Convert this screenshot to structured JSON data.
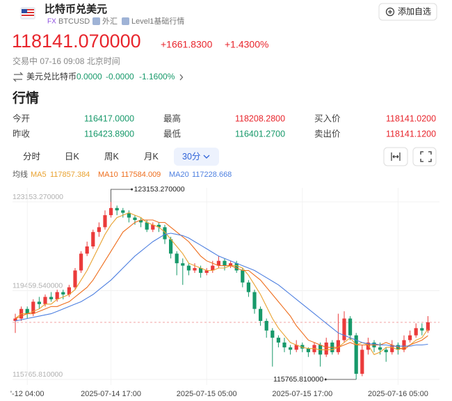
{
  "header": {
    "title": "比特币兑美元",
    "tags": [
      "FX",
      "BTCUSD",
      "外汇",
      "Level1基础行情"
    ],
    "button": "添加自选"
  },
  "quote": {
    "price": "118141.070000",
    "change": "+1661.8300",
    "change_pct": "+1.4300%",
    "status": "交易中 07-16 09:08 北京时间",
    "inverse": {
      "label": "美元兑比特币",
      "price": "0.0000",
      "change": "-0.0000",
      "change_pct": "-1.1600%"
    }
  },
  "section_title": "行情",
  "stats": [
    [
      "今开",
      "116417.0000",
      "最高",
      "118208.2800",
      "买入价",
      "118141.0200"
    ],
    [
      "昨收",
      "116423.8900",
      "最低",
      "116401.2700",
      "卖出价",
      "118141.1200"
    ]
  ],
  "tabs": [
    "分时",
    "日K",
    "周K",
    "月K",
    "30分"
  ],
  "ma_label": "均线",
  "chart_data": {
    "type": "candlestick",
    "x": [
      null,
      null,
      "'-12 04:00",
      null,
      null,
      null,
      null,
      null,
      null,
      null,
      null,
      null,
      null,
      null,
      null,
      null,
      "2025-07-14 17:00",
      null,
      null,
      null,
      null,
      null,
      null,
      null,
      null,
      null,
      null,
      null,
      null,
      null,
      null,
      null,
      "2025-07-15 05:00",
      null,
      null,
      null,
      null,
      null,
      null,
      null,
      null,
      null,
      null,
      null,
      null,
      null,
      null,
      null,
      "2025-07-15 17:00",
      null,
      null,
      null,
      null,
      null,
      null,
      null,
      null,
      null,
      null,
      null,
      null,
      null,
      null,
      null,
      "2025-07-16 05:00",
      null,
      null,
      null,
      null,
      null
    ],
    "ohlc": [
      [
        118200,
        118500,
        117700,
        118300
      ],
      [
        118300,
        118800,
        118200,
        118700
      ],
      [
        118700,
        118800,
        118300,
        118500
      ],
      [
        118500,
        119100,
        118400,
        119000
      ],
      [
        119000,
        119200,
        118700,
        118900
      ],
      [
        118900,
        119300,
        118800,
        119200
      ],
      [
        119200,
        119400,
        119000,
        119100
      ],
      [
        119100,
        119500,
        119000,
        119400
      ],
      [
        119400,
        119500,
        119100,
        119300
      ],
      [
        119300,
        119700,
        119200,
        119600
      ],
      [
        119600,
        120400,
        119500,
        120300
      ],
      [
        120300,
        121100,
        120200,
        121000
      ],
      [
        121000,
        121500,
        120900,
        121300
      ],
      [
        121300,
        122000,
        121200,
        121900
      ],
      [
        121900,
        122300,
        121700,
        122100
      ],
      [
        122100,
        122800,
        122000,
        122600
      ],
      [
        122600,
        123153.27,
        122500,
        122900
      ],
      [
        122900,
        123000,
        122600,
        122800
      ],
      [
        122800,
        122900,
        122500,
        122700
      ],
      [
        122700,
        122800,
        122300,
        122500
      ],
      [
        122500,
        122600,
        122200,
        122400
      ],
      [
        122400,
        122500,
        122100,
        122300
      ],
      [
        122300,
        122400,
        121900,
        122000
      ],
      [
        122000,
        122300,
        121900,
        122200
      ],
      [
        122200,
        122300,
        121900,
        122100
      ],
      [
        122100,
        122200,
        121400,
        121600
      ],
      [
        121600,
        121700,
        120800,
        121000
      ],
      [
        121000,
        121100,
        120100,
        120600
      ],
      [
        120600,
        120800,
        119700,
        120500
      ],
      [
        120500,
        120600,
        120100,
        120300
      ],
      [
        120300,
        120600,
        120200,
        120400
      ],
      [
        120400,
        120500,
        120000,
        120200
      ],
      [
        120200,
        120400,
        120100,
        120300
      ],
      [
        120300,
        120700,
        120200,
        120500
      ],
      [
        120500,
        120900,
        120400,
        120700
      ],
      [
        120700,
        120800,
        120300,
        120500
      ],
      [
        120500,
        120700,
        120400,
        120600
      ],
      [
        120600,
        120700,
        120200,
        120300
      ],
      [
        120300,
        120400,
        119600,
        119800
      ],
      [
        119800,
        119900,
        119200,
        119400
      ],
      [
        119400,
        119500,
        118500,
        118700
      ],
      [
        118700,
        118800,
        118000,
        118200
      ],
      [
        118200,
        118300,
        117500,
        117800
      ],
      [
        117800,
        117900,
        116300,
        117500
      ],
      [
        117500,
        117600,
        117100,
        117300
      ],
      [
        117300,
        117500,
        116900,
        117100
      ],
      [
        117100,
        117200,
        116800,
        117000
      ],
      [
        117000,
        117400,
        116900,
        117200
      ],
      [
        117200,
        117300,
        116900,
        117050
      ],
      [
        117050,
        117100,
        116700,
        116900
      ],
      [
        116900,
        117300,
        116800,
        117200
      ],
      [
        117200,
        117300,
        116300,
        116800
      ],
      [
        116800,
        117500,
        116700,
        117300
      ],
      [
        117300,
        117400,
        116800,
        116900
      ],
      [
        116900,
        118500,
        116800,
        117400
      ],
      [
        117400,
        118600,
        117300,
        118300
      ],
      [
        118300,
        118400,
        117400,
        117600
      ],
      [
        117600,
        117700,
        115765.81,
        116000
      ],
      [
        116000,
        117200,
        115900,
        117000
      ],
      [
        117000,
        117500,
        116800,
        117300
      ],
      [
        117300,
        117400,
        116900,
        117100
      ],
      [
        117100,
        117300,
        116800,
        117000
      ],
      [
        117000,
        117100,
        116500,
        116900
      ],
      [
        116900,
        117400,
        116800,
        117200
      ],
      [
        117200,
        117300,
        116800,
        117000
      ],
      [
        117000,
        117600,
        116900,
        117400
      ],
      [
        117400,
        117800,
        117300,
        117600
      ],
      [
        117600,
        118100,
        117500,
        117900
      ],
      [
        117900,
        118100,
        117600,
        117800
      ],
      [
        117800,
        118400,
        117700,
        118141
      ]
    ],
    "up_color": "#eb3b3b",
    "down_color": "#17996a",
    "lines": [
      {
        "name": "MA5",
        "color": "#e9a230",
        "values": [
          118300,
          118500,
          118500,
          118600,
          118700,
          118900,
          118900,
          119100,
          119200,
          119300,
          119500,
          119900,
          120300,
          120800,
          121300,
          121800,
          122200,
          122500,
          122600,
          122700,
          122600,
          122500,
          122300,
          122200,
          122100,
          121900,
          121600,
          121300,
          121000,
          120600,
          120500,
          120400,
          120300,
          120300,
          120400,
          120400,
          120500,
          120500,
          120400,
          120100,
          119700,
          119300,
          118800,
          118300,
          117900,
          117600,
          117300,
          117200,
          117100,
          117050,
          117050,
          117000,
          117000,
          117000,
          117100,
          117300,
          117500,
          117200,
          117300,
          117200,
          116800,
          116900,
          117100,
          117100,
          117000,
          117100,
          117200,
          117400,
          117500,
          117857.384
        ]
      },
      {
        "name": "MA10",
        "color": "#ee6d1c",
        "values": [
          118300,
          118400,
          118500,
          118500,
          118600,
          118700,
          118800,
          118800,
          118900,
          119000,
          119200,
          119400,
          119600,
          119900,
          120300,
          120700,
          121100,
          121500,
          121900,
          122100,
          122300,
          122400,
          122400,
          122400,
          122300,
          122300,
          122100,
          121900,
          121700,
          121500,
          121200,
          120900,
          120700,
          120600,
          120500,
          120500,
          120500,
          120400,
          120300,
          120300,
          120100,
          119900,
          119600,
          119300,
          119000,
          118700,
          118400,
          118000,
          117700,
          117400,
          117300,
          117200,
          117100,
          117100,
          117100,
          117200,
          117300,
          117200,
          117200,
          117200,
          117200,
          117200,
          117300,
          117200,
          117100,
          117000,
          117200,
          117300,
          117400,
          117584.009
        ]
      },
      {
        "name": "MA20",
        "color": "#4d7fe0",
        "values": [
          118200,
          118250,
          118300,
          118350,
          118400,
          118450,
          118500,
          118600,
          118700,
          118800,
          118900,
          119000,
          119150,
          119300,
          119500,
          119700,
          119900,
          120150,
          120400,
          120650,
          120900,
          121100,
          121300,
          121500,
          121650,
          121800,
          121850,
          121800,
          121750,
          121650,
          121500,
          121350,
          121200,
          121050,
          120900,
          120800,
          120700,
          120600,
          120500,
          120400,
          120300,
          120150,
          120000,
          119850,
          119700,
          119500,
          119300,
          119100,
          118900,
          118700,
          118500,
          118300,
          118100,
          117900,
          117700,
          117600,
          117500,
          117400,
          117300,
          117250,
          117250,
          117200,
          117200,
          117150,
          117150,
          117150,
          117150,
          117200,
          117200,
          117228.668
        ]
      }
    ],
    "ylim": [
      115765.81,
      123153.27
    ],
    "yticks": [
      {
        "value": 115765.81,
        "label": "115765.810000"
      },
      {
        "value": 119459.54,
        "label": "119459.540000"
      },
      {
        "value": 123153.27,
        "label": "123153.270000"
      }
    ],
    "annotations": [
      {
        "value": 123153.27,
        "label": "123153.270000"
      },
      {
        "value": 115765.81,
        "label": "115765.810000"
      }
    ],
    "price_line": 118141.07,
    "price_line_color": "#f2a3a3",
    "grid": true
  }
}
